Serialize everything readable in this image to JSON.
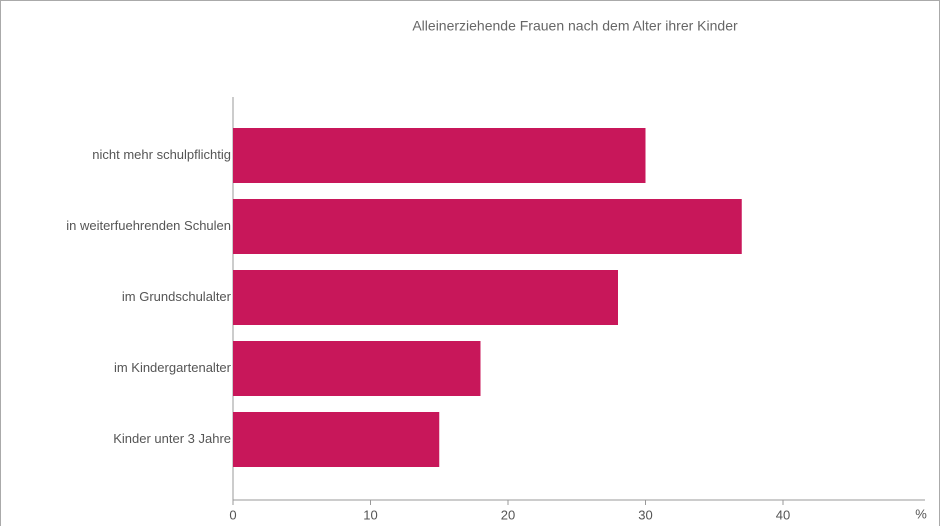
{
  "chart_data": {
    "type": "hbar",
    "title": "Alleinerziehende Frauen nach dem Alter ihrer Kinder",
    "categories": [
      "nicht mehr schulpflichtig",
      "in weiterfuehrenden Schulen",
      "im Grundschulalter",
      "im Kindergartenalter",
      "Kinder unter 3 Jahre"
    ],
    "values": [
      30,
      37,
      28,
      18,
      15
    ],
    "color": "#c8175a",
    "xlabel": "%",
    "xlim": [
      0,
      50
    ],
    "xticks": [
      0,
      10,
      20,
      30,
      40
    ]
  }
}
